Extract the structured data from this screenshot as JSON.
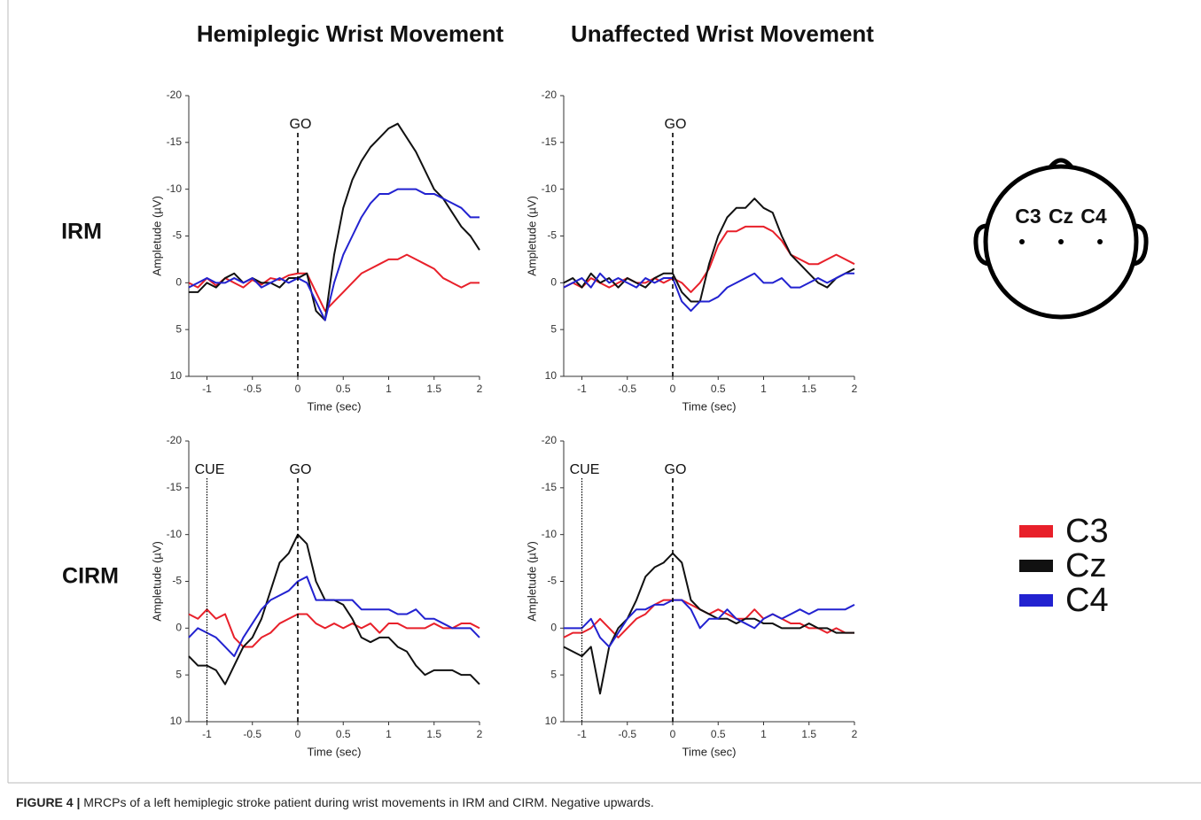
{
  "column_titles": [
    "Hemiplegic Wrist Movement",
    "Unaffected Wrist Movement"
  ],
  "row_labels": [
    "IRM",
    "CIRM"
  ],
  "head_labels": [
    "C3",
    "Cz",
    "C4"
  ],
  "caption": {
    "label": "FIGURE 4 |",
    "text": "MRCPs of a left hemiplegic stroke patient during wrist movements in IRM and CIRM. Negative upwards."
  },
  "chart_data": [
    {
      "type": "line",
      "x_label": "Time (sec)",
      "y_label": "Ampletude (µV)",
      "xlim": [
        -1.2,
        2
      ],
      "xticks": [
        -1,
        -0.5,
        0,
        0.5,
        1,
        1.5,
        2
      ],
      "ylim": [
        -20,
        10
      ],
      "yticks": [
        -20,
        -15,
        -10,
        -5,
        0,
        5,
        10
      ],
      "y_reversed": true,
      "grid": false,
      "events": [
        {
          "x": 0,
          "label": "GO",
          "style": "dashed"
        }
      ],
      "x": [
        -1.2,
        -1.1,
        -1.0,
        -0.9,
        -0.8,
        -0.7,
        -0.6,
        -0.5,
        -0.4,
        -0.3,
        -0.2,
        -0.1,
        0,
        0.1,
        0.2,
        0.3,
        0.4,
        0.5,
        0.6,
        0.7,
        0.8,
        0.9,
        1.0,
        1.1,
        1.2,
        1.3,
        1.4,
        1.5,
        1.6,
        1.7,
        1.8,
        1.9,
        2.0
      ],
      "series": [
        {
          "name": "C3",
          "color": "#e8202a",
          "values": [
            0,
            0.5,
            -0.5,
            0.3,
            -0.5,
            0,
            0.5,
            -0.3,
            0.2,
            -0.5,
            -0.3,
            -0.8,
            -1,
            -1,
            1,
            3,
            2,
            1,
            0,
            -1,
            -1.5,
            -2,
            -2.5,
            -2.5,
            -3,
            -2.5,
            -2,
            -1.5,
            -0.5,
            0,
            0.5,
            0,
            0
          ]
        },
        {
          "name": "Cz",
          "color": "#111111",
          "values": [
            1,
            1,
            0,
            0.5,
            -0.5,
            -1,
            0,
            -0.5,
            0,
            0,
            0.5,
            -0.5,
            -0.5,
            -1,
            3,
            4,
            -3,
            -8,
            -11,
            -13,
            -14.5,
            -15.5,
            -16.5,
            -17,
            -15.5,
            -14,
            -12,
            -10,
            -9,
            -7.5,
            -6,
            -5,
            -3.5
          ]
        },
        {
          "name": "C4",
          "color": "#2222d0",
          "values": [
            0.5,
            0,
            -0.5,
            0,
            0,
            -0.5,
            0,
            -0.5,
            0.5,
            0,
            -0.5,
            0,
            -0.5,
            0,
            2,
            4,
            0,
            -3,
            -5,
            -7,
            -8.5,
            -9.5,
            -9.5,
            -10,
            -10,
            -10,
            -9.5,
            -9.5,
            -9,
            -8.5,
            -8,
            -7,
            -7
          ]
        }
      ]
    },
    {
      "type": "line",
      "x_label": "Time (sec)",
      "y_label": "Ampletude (µV)",
      "xlim": [
        -1.2,
        2
      ],
      "xticks": [
        -1,
        -0.5,
        0,
        0.5,
        1,
        1.5,
        2
      ],
      "ylim": [
        -20,
        10
      ],
      "yticks": [
        -20,
        -15,
        -10,
        -5,
        0,
        5,
        10
      ],
      "y_reversed": true,
      "grid": false,
      "events": [
        {
          "x": 0,
          "label": "GO",
          "style": "dashed"
        }
      ],
      "x": [
        -1.2,
        -1.1,
        -1.0,
        -0.9,
        -0.8,
        -0.7,
        -0.6,
        -0.5,
        -0.4,
        -0.3,
        -0.2,
        -0.1,
        0,
        0.1,
        0.2,
        0.3,
        0.4,
        0.5,
        0.6,
        0.7,
        0.8,
        0.9,
        1.0,
        1.1,
        1.2,
        1.3,
        1.4,
        1.5,
        1.6,
        1.7,
        1.8,
        1.9,
        2.0
      ],
      "series": [
        {
          "name": "C3",
          "color": "#e8202a",
          "values": [
            0.5,
            0,
            0.5,
            -0.5,
            0,
            0.5,
            0,
            -0.5,
            0,
            0,
            -0.5,
            0,
            -0.5,
            0,
            1,
            0,
            -1.5,
            -4,
            -5.5,
            -5.5,
            -6,
            -6,
            -6,
            -5.5,
            -4.5,
            -3,
            -2.5,
            -2,
            -2,
            -2.5,
            -3,
            -2.5,
            -2
          ]
        },
        {
          "name": "Cz",
          "color": "#111111",
          "values": [
            0,
            -0.5,
            0.5,
            -1,
            0,
            -0.5,
            0.5,
            -0.5,
            0,
            0.5,
            -0.5,
            -1,
            -1,
            1,
            2,
            2,
            -2,
            -5,
            -7,
            -8,
            -8,
            -9,
            -8,
            -7.5,
            -5,
            -3,
            -2,
            -1,
            0,
            0.5,
            -0.5,
            -1,
            -1.5
          ]
        },
        {
          "name": "C4",
          "color": "#2222d0",
          "values": [
            0.5,
            0,
            -0.5,
            0.5,
            -1,
            0,
            -0.5,
            0,
            0.5,
            -0.5,
            0,
            -0.5,
            -0.5,
            2,
            3,
            2,
            2,
            1.5,
            0.5,
            0,
            -0.5,
            -1,
            0,
            0,
            -0.5,
            0.5,
            0.5,
            0,
            -0.5,
            0,
            -0.5,
            -1,
            -1
          ]
        }
      ]
    },
    {
      "type": "line",
      "x_label": "Time (sec)",
      "y_label": "Ampletude (µV)",
      "xlim": [
        -1.2,
        2
      ],
      "xticks": [
        -1,
        -0.5,
        0,
        0.5,
        1,
        1.5,
        2
      ],
      "ylim": [
        -20,
        10
      ],
      "yticks": [
        -20,
        -15,
        -10,
        -5,
        0,
        5,
        10
      ],
      "y_reversed": true,
      "grid": false,
      "events": [
        {
          "x": -1,
          "label": "CUE",
          "style": "dotted"
        },
        {
          "x": 0,
          "label": "GO",
          "style": "dashed"
        }
      ],
      "x": [
        -1.2,
        -1.1,
        -1.0,
        -0.9,
        -0.8,
        -0.7,
        -0.6,
        -0.5,
        -0.4,
        -0.3,
        -0.2,
        -0.1,
        0,
        0.1,
        0.2,
        0.3,
        0.4,
        0.5,
        0.6,
        0.7,
        0.8,
        0.9,
        1.0,
        1.1,
        1.2,
        1.3,
        1.4,
        1.5,
        1.6,
        1.7,
        1.8,
        1.9,
        2.0
      ],
      "series": [
        {
          "name": "C3",
          "color": "#e8202a",
          "values": [
            -1.5,
            -1,
            -2,
            -1,
            -1.5,
            1,
            2,
            2,
            1,
            0.5,
            -0.5,
            -1,
            -1.5,
            -1.5,
            -0.5,
            0,
            -0.5,
            0,
            -0.5,
            0,
            -0.5,
            0.5,
            -0.5,
            -0.5,
            0,
            0,
            0,
            -0.5,
            0,
            0,
            -0.5,
            -0.5,
            0
          ]
        },
        {
          "name": "Cz",
          "color": "#111111",
          "values": [
            3,
            4,
            4,
            4.5,
            6,
            4,
            2,
            1,
            -1,
            -4,
            -7,
            -8,
            -10,
            -9,
            -5,
            -3,
            -3,
            -2.5,
            -1,
            1,
            1.5,
            1,
            1,
            2,
            2.5,
            4,
            5,
            4.5,
            4.5,
            4.5,
            5,
            5,
            6
          ]
        },
        {
          "name": "C4",
          "color": "#2222d0",
          "values": [
            1,
            0,
            0.5,
            1,
            2,
            3,
            1,
            -0.5,
            -2,
            -3,
            -3.5,
            -4,
            -5,
            -5.5,
            -3,
            -3,
            -3,
            -3,
            -3,
            -2,
            -2,
            -2,
            -2,
            -1.5,
            -1.5,
            -2,
            -1,
            -1,
            -0.5,
            0,
            0,
            0,
            1
          ]
        }
      ]
    },
    {
      "type": "line",
      "x_label": "Time (sec)",
      "y_label": "Ampletude (µV)",
      "xlim": [
        -1.2,
        2
      ],
      "xticks": [
        -1,
        -0.5,
        0,
        0.5,
        1,
        1.5,
        2
      ],
      "ylim": [
        -20,
        10
      ],
      "yticks": [
        -20,
        -15,
        -10,
        -5,
        0,
        5,
        10
      ],
      "y_reversed": true,
      "grid": false,
      "events": [
        {
          "x": -1,
          "label": "CUE",
          "style": "dotted"
        },
        {
          "x": 0,
          "label": "GO",
          "style": "dashed"
        }
      ],
      "x": [
        -1.2,
        -1.1,
        -1.0,
        -0.9,
        -0.8,
        -0.7,
        -0.6,
        -0.5,
        -0.4,
        -0.3,
        -0.2,
        -0.1,
        0,
        0.1,
        0.2,
        0.3,
        0.4,
        0.5,
        0.6,
        0.7,
        0.8,
        0.9,
        1.0,
        1.1,
        1.2,
        1.3,
        1.4,
        1.5,
        1.6,
        1.7,
        1.8,
        1.9,
        2.0
      ],
      "series": [
        {
          "name": "C3",
          "color": "#e8202a",
          "values": [
            1,
            0.5,
            0.5,
            0,
            -1,
            0,
            1,
            0,
            -1,
            -1.5,
            -2.5,
            -3,
            -3,
            -3,
            -2.5,
            -2,
            -1.5,
            -2,
            -1.5,
            -1,
            -1,
            -2,
            -1,
            -1.5,
            -1,
            -0.5,
            -0.5,
            0,
            0,
            0.5,
            0,
            0.5,
            0.5
          ]
        },
        {
          "name": "Cz",
          "color": "#111111",
          "values": [
            2,
            2.5,
            3,
            2,
            7,
            2,
            0,
            -1,
            -3,
            -5.5,
            -6.5,
            -7,
            -8,
            -7,
            -3,
            -2,
            -1.5,
            -1,
            -1,
            -0.5,
            -1,
            -1,
            -0.5,
            -0.5,
            0,
            0,
            0,
            -0.5,
            0,
            0,
            0.5,
            0.5,
            0.5
          ]
        },
        {
          "name": "C4",
          "color": "#2222d0",
          "values": [
            0,
            0,
            0,
            -1,
            1,
            2,
            0.5,
            -1,
            -2,
            -2,
            -2.5,
            -2.5,
            -3,
            -3,
            -2,
            0,
            -1,
            -1,
            -2,
            -1,
            -0.5,
            0,
            -1,
            -1.5,
            -1,
            -1.5,
            -2,
            -1.5,
            -2,
            -2,
            -2,
            -2,
            -2.5
          ]
        }
      ]
    }
  ]
}
